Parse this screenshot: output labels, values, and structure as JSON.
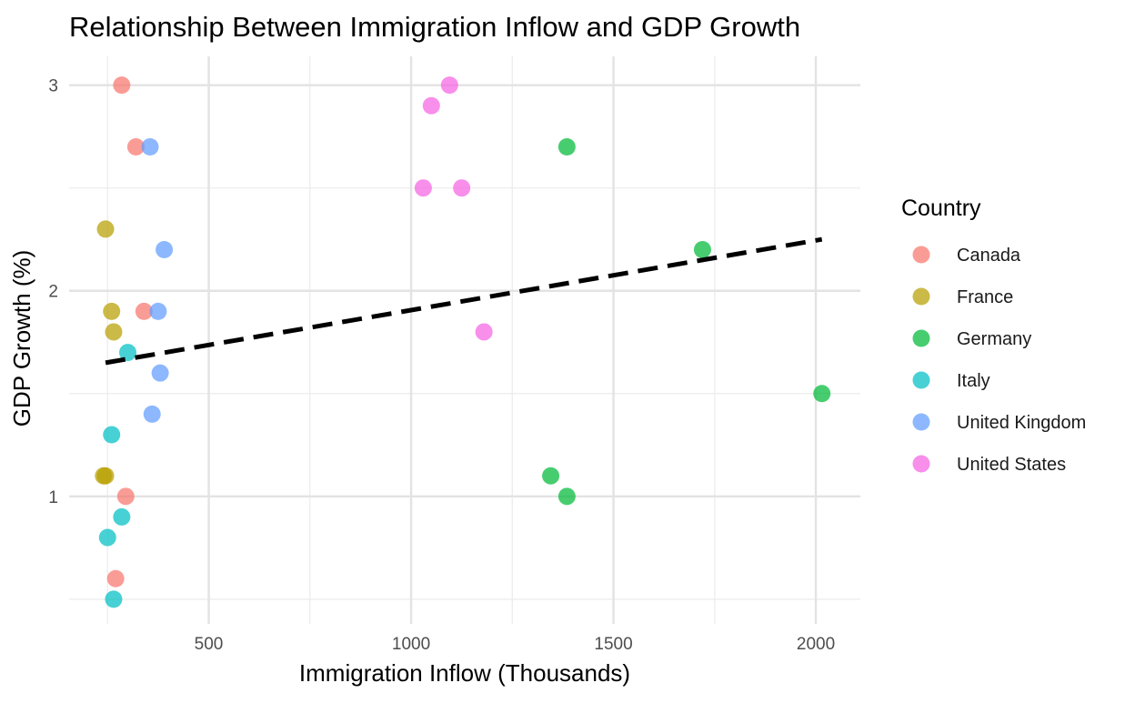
{
  "chart_data": {
    "type": "scatter",
    "title": "Relationship Between Immigration Inflow and GDP Growth",
    "xlabel": "Immigration Inflow (Thousands)",
    "ylabel": "GDP Growth (%)",
    "xlim": [
      155,
      2110
    ],
    "ylim": [
      0.38,
      3.14
    ],
    "x_ticks": [
      500,
      1000,
      1500,
      2000
    ],
    "x_minor_ticks": [
      250,
      750,
      1250,
      1750
    ],
    "y_ticks": [
      1,
      2,
      3
    ],
    "y_minor_ticks": [
      0.5,
      1.5,
      2.5
    ],
    "grid": true,
    "legend": {
      "title": "Country",
      "position": "right"
    },
    "series": [
      {
        "name": "Canada",
        "color": "#F8766D",
        "points": [
          [
            285,
            3.0
          ],
          [
            320,
            2.7
          ],
          [
            340,
            1.9
          ],
          [
            295,
            1.0
          ],
          [
            270,
            0.6
          ]
        ]
      },
      {
        "name": "France",
        "color": "#B79F00",
        "points": [
          [
            245,
            2.3
          ],
          [
            260,
            1.9
          ],
          [
            265,
            1.8
          ],
          [
            240,
            1.1
          ],
          [
            245,
            1.1
          ]
        ]
      },
      {
        "name": "Germany",
        "color": "#00BA38",
        "points": [
          [
            1385,
            2.7
          ],
          [
            1720,
            2.2
          ],
          [
            2015,
            1.5
          ],
          [
            1345,
            1.1
          ],
          [
            1385,
            1.0
          ]
        ]
      },
      {
        "name": "Italy",
        "color": "#00BFC4",
        "points": [
          [
            300,
            1.7
          ],
          [
            260,
            1.3
          ],
          [
            285,
            0.9
          ],
          [
            250,
            0.8
          ],
          [
            265,
            0.5
          ]
        ]
      },
      {
        "name": "United Kingdom",
        "color": "#619CFF",
        "points": [
          [
            355,
            2.7
          ],
          [
            390,
            2.2
          ],
          [
            375,
            1.9
          ],
          [
            380,
            1.6
          ],
          [
            360,
            1.4
          ]
        ]
      },
      {
        "name": "United States",
        "color": "#F564E3",
        "points": [
          [
            1095,
            3.0
          ],
          [
            1050,
            2.9
          ],
          [
            1030,
            2.5
          ],
          [
            1125,
            2.5
          ],
          [
            1180,
            1.8
          ]
        ]
      }
    ],
    "trend_line": {
      "style": "dashed",
      "color": "#000000",
      "x": [
        245,
        2015
      ],
      "y": [
        1.65,
        2.25
      ]
    }
  }
}
